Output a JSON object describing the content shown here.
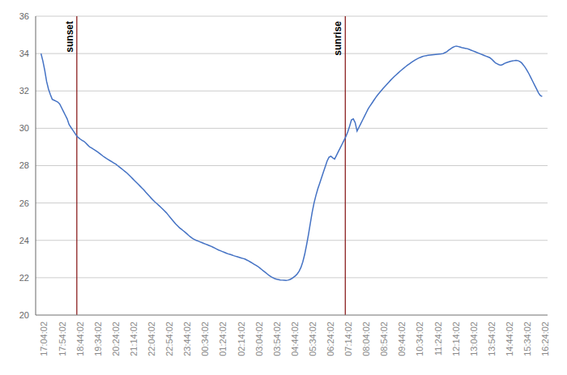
{
  "chart_data": {
    "type": "line",
    "x": [
      0,
      7,
      14,
      21,
      28,
      35,
      42,
      49,
      56,
      63,
      70,
      77,
      84,
      91,
      98,
      105,
      112,
      119,
      126,
      133,
      140,
      147,
      154,
      161,
      168,
      175,
      182,
      189,
      196,
      203,
      210,
      217,
      224,
      231,
      238,
      245,
      252,
      259,
      266,
      273,
      280,
      287,
      294,
      301,
      308,
      315,
      322,
      329,
      336,
      343,
      350,
      357,
      364,
      371,
      378,
      385,
      392,
      399,
      406,
      413,
      420,
      427,
      434,
      441,
      448,
      455,
      462,
      469,
      476,
      483,
      490,
      497,
      504,
      511,
      518,
      525,
      532,
      539,
      546,
      553,
      560,
      567,
      574,
      581,
      588,
      595,
      602,
      609,
      616,
      623,
      630,
      637,
      644,
      651,
      658,
      665,
      672,
      679,
      686,
      693,
      700,
      707,
      714,
      721,
      728,
      735,
      742,
      749,
      756,
      763,
      770,
      777,
      784,
      791,
      798,
      805,
      812,
      819,
      826,
      833,
      840,
      847,
      854,
      861,
      868,
      875,
      882,
      889,
      896,
      903,
      910,
      917,
      924,
      931,
      938,
      945,
      952,
      959,
      966,
      973,
      980,
      987,
      994,
      1001,
      1008,
      1015,
      1022,
      1029,
      1036,
      1043,
      1050,
      1057,
      1064,
      1071,
      1078,
      1085,
      1092,
      1099,
      1106,
      1113,
      1120,
      1127,
      1134,
      1141,
      1148,
      1155,
      1162,
      1169,
      1176,
      1183,
      1190,
      1197,
      1204,
      1211,
      1218,
      1225,
      1232,
      1239,
      1246,
      1253,
      1260,
      1267,
      1274,
      1281,
      1288,
      1295,
      1302,
      1309,
      1316,
      1323,
      1330,
      1337,
      1344,
      1351,
      1358,
      1365,
      1372,
      1379,
      1386,
      1393,
      1400,
      1407,
      1414,
      1421,
      1428,
      1435,
      1442,
      1449,
      1456,
      1463,
      1470,
      1477,
      1484,
      1491,
      1498,
      1505,
      1512,
      1519,
      1526,
      1533,
      1540,
      1547,
      1554,
      1561,
      1568,
      1575,
      1582,
      1589,
      1596,
      1603,
      1610,
      1617,
      1624,
      1631,
      1638,
      1645,
      1652,
      1659,
      1666,
      1673,
      1680,
      1687,
      1694,
      1701,
      1708,
      1715,
      1722,
      1729,
      1736,
      1743,
      1750,
      1757,
      1764,
      1771,
      1778,
      1785,
      1792,
      1799,
      1806,
      1813,
      1820,
      1827,
      1834,
      1841,
      1848,
      1855,
      1862,
      1869,
      1876
    ],
    "values": [
      34.0,
      33.6,
      33.1,
      32.5,
      32.1,
      31.8,
      31.55,
      31.5,
      31.45,
      31.4,
      31.3,
      31.1,
      30.9,
      30.7,
      30.5,
      30.2,
      30.05,
      29.9,
      29.75,
      29.6,
      29.5,
      29.42,
      29.35,
      29.3,
      29.2,
      29.1,
      29.0,
      28.95,
      28.88,
      28.82,
      28.75,
      28.68,
      28.6,
      28.52,
      28.45,
      28.38,
      28.32,
      28.26,
      28.2,
      28.14,
      28.08,
      28.0,
      27.92,
      27.84,
      27.76,
      27.68,
      27.6,
      27.5,
      27.4,
      27.3,
      27.2,
      27.1,
      27.0,
      26.9,
      26.8,
      26.7,
      26.58,
      26.47,
      26.36,
      26.25,
      26.15,
      26.05,
      25.96,
      25.87,
      25.78,
      25.68,
      25.58,
      25.48,
      25.36,
      25.24,
      25.12,
      25.0,
      24.88,
      24.78,
      24.68,
      24.6,
      24.52,
      24.44,
      24.35,
      24.26,
      24.18,
      24.1,
      24.05,
      24.0,
      23.96,
      23.92,
      23.88,
      23.84,
      23.8,
      23.76,
      23.72,
      23.68,
      23.63,
      23.58,
      23.53,
      23.48,
      23.44,
      23.4,
      23.36,
      23.32,
      23.28,
      23.25,
      23.22,
      23.18,
      23.15,
      23.12,
      23.09,
      23.06,
      23.03,
      23.0,
      22.95,
      22.9,
      22.84,
      22.78,
      22.72,
      22.66,
      22.6,
      22.52,
      22.44,
      22.36,
      22.28,
      22.2,
      22.12,
      22.05,
      22.0,
      21.95,
      21.92,
      21.9,
      21.88,
      21.87,
      21.86,
      21.85,
      21.87,
      21.9,
      21.95,
      22.02,
      22.1,
      22.2,
      22.35,
      22.55,
      22.85,
      23.25,
      23.75,
      24.3,
      24.9,
      25.5,
      26.0,
      26.4,
      26.75,
      27.05,
      27.35,
      27.65,
      27.95,
      28.25,
      28.45,
      28.5,
      28.42,
      28.35,
      28.55,
      28.75,
      28.95,
      29.15,
      29.35,
      29.55,
      29.8,
      30.1,
      30.45,
      30.5,
      30.3,
      29.85,
      30.05,
      30.25,
      30.45,
      30.65,
      30.85,
      31.05,
      31.2,
      31.35,
      31.5,
      31.65,
      31.78,
      31.9,
      32.02,
      32.14,
      32.25,
      32.36,
      32.47,
      32.58,
      32.68,
      32.78,
      32.87,
      32.96,
      33.05,
      33.14,
      33.22,
      33.3,
      33.38,
      33.45,
      33.52,
      33.59,
      33.65,
      33.71,
      33.76,
      33.8,
      33.84,
      33.87,
      33.89,
      33.91,
      33.92,
      33.93,
      33.94,
      33.95,
      33.96,
      33.97,
      33.98,
      34.0,
      34.05,
      34.1,
      34.18,
      34.25,
      34.32,
      34.37,
      34.4,
      34.38,
      34.35,
      34.32,
      34.3,
      34.28,
      34.26,
      34.22,
      34.18,
      34.14,
      34.1,
      34.06,
      34.02,
      33.98,
      33.94,
      33.9,
      33.86,
      33.82,
      33.78,
      33.7,
      33.6,
      33.5,
      33.45,
      33.4,
      33.38,
      33.42,
      33.48,
      33.52,
      33.55,
      33.58,
      33.6,
      33.62,
      33.64,
      33.62,
      33.58,
      33.5,
      33.38,
      33.24,
      33.08,
      32.9,
      32.7,
      32.5,
      32.3,
      32.1,
      31.9,
      31.75,
      31.7
    ],
    "color": "#4472C4",
    "xlim": [
      -20.1,
      1896.1
    ],
    "xticks": [
      {
        "value": 0,
        "label": "17:04:02"
      },
      {
        "value": 67,
        "label": "17:54:02"
      },
      {
        "value": 134,
        "label": "18:44:02"
      },
      {
        "value": 201,
        "label": "19:34:02"
      },
      {
        "value": 268,
        "label": "20:24:02"
      },
      {
        "value": 335,
        "label": "21:14:02"
      },
      {
        "value": 402,
        "label": "22:04:02"
      },
      {
        "value": 469,
        "label": "22:54:02"
      },
      {
        "value": 536,
        "label": "23:44:02"
      },
      {
        "value": 603,
        "label": "00:34:02"
      },
      {
        "value": 670,
        "label": "01:24:02"
      },
      {
        "value": 737,
        "label": "02:14:02"
      },
      {
        "value": 804,
        "label": "03:04:02"
      },
      {
        "value": 871,
        "label": "03:54:02"
      },
      {
        "value": 938,
        "label": "04:44:02"
      },
      {
        "value": 1005,
        "label": "05:34:02"
      },
      {
        "value": 1072,
        "label": "06:24:02"
      },
      {
        "value": 1139,
        "label": "07:14:02"
      },
      {
        "value": 1206,
        "label": "08:04:02"
      },
      {
        "value": 1273,
        "label": "08:54:02"
      },
      {
        "value": 1340,
        "label": "09:44:02"
      },
      {
        "value": 1407,
        "label": "10:34:02"
      },
      {
        "value": 1474,
        "label": "11:24:02"
      },
      {
        "value": 1541,
        "label": "12:14:02"
      },
      {
        "value": 1608,
        "label": "13:04:02"
      },
      {
        "value": 1675,
        "label": "13:54:02"
      },
      {
        "value": 1742,
        "label": "14:44:02"
      },
      {
        "value": 1809,
        "label": "15:34:02"
      },
      {
        "value": 1876,
        "label": "16:24:02"
      }
    ],
    "ylim": [
      20,
      36
    ],
    "yticks": [
      20,
      22,
      24,
      26,
      28,
      30,
      32,
      34,
      36
    ],
    "grid": "y",
    "annotations": [
      {
        "text": "sunset",
        "x": 134,
        "color": "#8B2020"
      },
      {
        "text": "sunrise",
        "x": 1139,
        "color": "#8B2020"
      }
    ]
  }
}
